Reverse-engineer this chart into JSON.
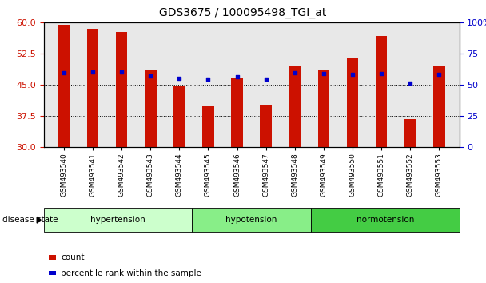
{
  "title": "GDS3675 / 100095498_TGI_at",
  "samples": [
    "GSM493540",
    "GSM493541",
    "GSM493542",
    "GSM493543",
    "GSM493544",
    "GSM493545",
    "GSM493546",
    "GSM493547",
    "GSM493548",
    "GSM493549",
    "GSM493550",
    "GSM493551",
    "GSM493552",
    "GSM493553"
  ],
  "bar_values": [
    59.5,
    58.5,
    57.8,
    48.5,
    44.9,
    40.0,
    46.5,
    40.2,
    49.5,
    48.5,
    51.5,
    56.7,
    36.8,
    49.5
  ],
  "blue_dot_values": [
    48.0,
    48.2,
    48.1,
    47.2,
    46.5,
    46.3,
    47.0,
    46.3,
    48.0,
    47.8,
    47.5,
    47.8,
    45.5,
    47.5
  ],
  "ylim_left": [
    30,
    60
  ],
  "ylim_right": [
    0,
    100
  ],
  "yticks_left": [
    30,
    37.5,
    45,
    52.5,
    60
  ],
  "yticks_right": [
    0,
    25,
    50,
    75,
    100
  ],
  "bar_color": "#cc1100",
  "dot_color": "#0000cc",
  "groups": [
    {
      "label": "hypertension",
      "start": 0,
      "end": 5,
      "color": "#ccffcc"
    },
    {
      "label": "hypotension",
      "start": 5,
      "end": 9,
      "color": "#88ee88"
    },
    {
      "label": "normotension",
      "start": 9,
      "end": 14,
      "color": "#44cc44"
    }
  ],
  "legend_items": [
    {
      "label": "count",
      "color": "#cc1100"
    },
    {
      "label": "percentile rank within the sample",
      "color": "#0000cc"
    }
  ],
  "left_tick_color": "#cc1100",
  "right_tick_color": "#0000cc",
  "disease_state_label": "disease state",
  "background_color": "#ffffff",
  "plot_bg_color": "#e8e8e8",
  "bar_width": 0.4,
  "grid_linestyle": ":"
}
